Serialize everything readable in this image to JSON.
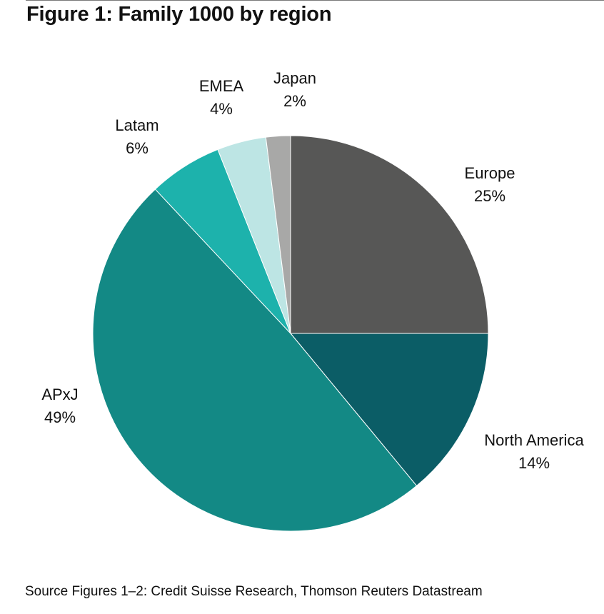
{
  "title": "Figure 1: Family 1000 by region",
  "source": "Source Figures 1–2: Credit Suisse Research, Thomson Reuters Datastream",
  "chart_data": {
    "type": "pie",
    "title": "Figure 1: Family 1000 by region",
    "start_angle": "12 o'clock",
    "direction": "clockwise",
    "slices": [
      {
        "label": "Europe",
        "value": 25,
        "value_label": "25%",
        "color": "#575756"
      },
      {
        "label": "North America",
        "value": 14,
        "value_label": "14%",
        "color": "#0b5d66"
      },
      {
        "label": "APxJ",
        "value": 49,
        "value_label": "49%",
        "color": "#138985"
      },
      {
        "label": "Latam",
        "value": 6,
        "value_label": "6%",
        "color": "#1db2ac"
      },
      {
        "label": "EMEA",
        "value": 4,
        "value_label": "4%",
        "color": "#bde5e4"
      },
      {
        "label": "Japan",
        "value": 2,
        "value_label": "2%",
        "color": "#a8a8a7"
      }
    ]
  }
}
